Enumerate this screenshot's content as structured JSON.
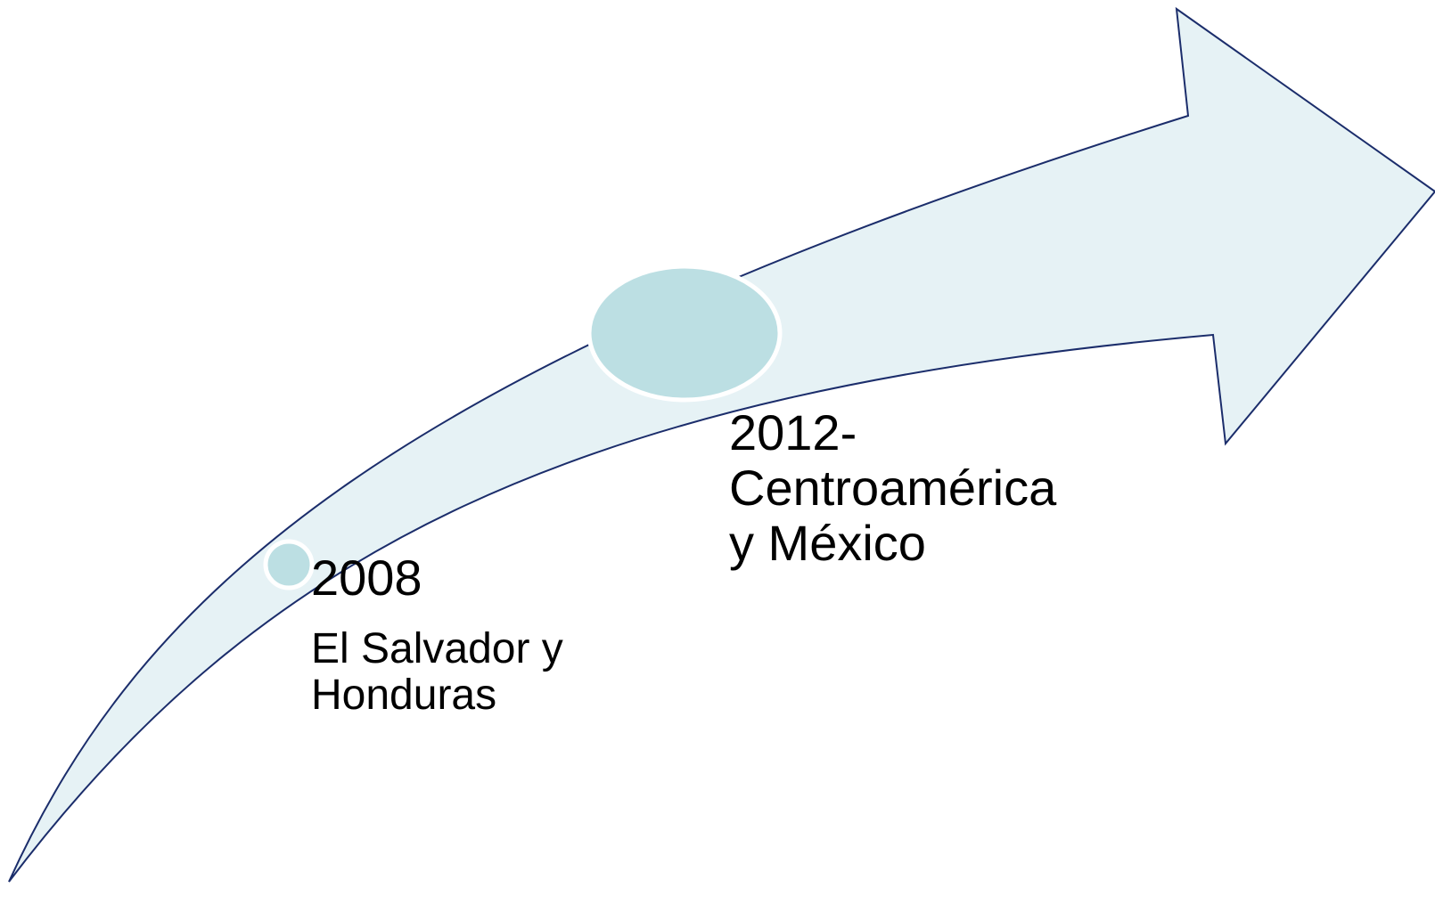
{
  "diagram": {
    "milestones": [
      {
        "year": "2008",
        "detail": "El Salvador y\nHonduras"
      },
      {
        "title": "2012-\nCentroamérica\ny México"
      }
    ],
    "colors": {
      "arrow_fill": "#e6f2f5",
      "arrow_stroke": "#1b2d6b",
      "marker_fill": "#bcdfe3",
      "marker_ring": "#ffffff"
    }
  }
}
